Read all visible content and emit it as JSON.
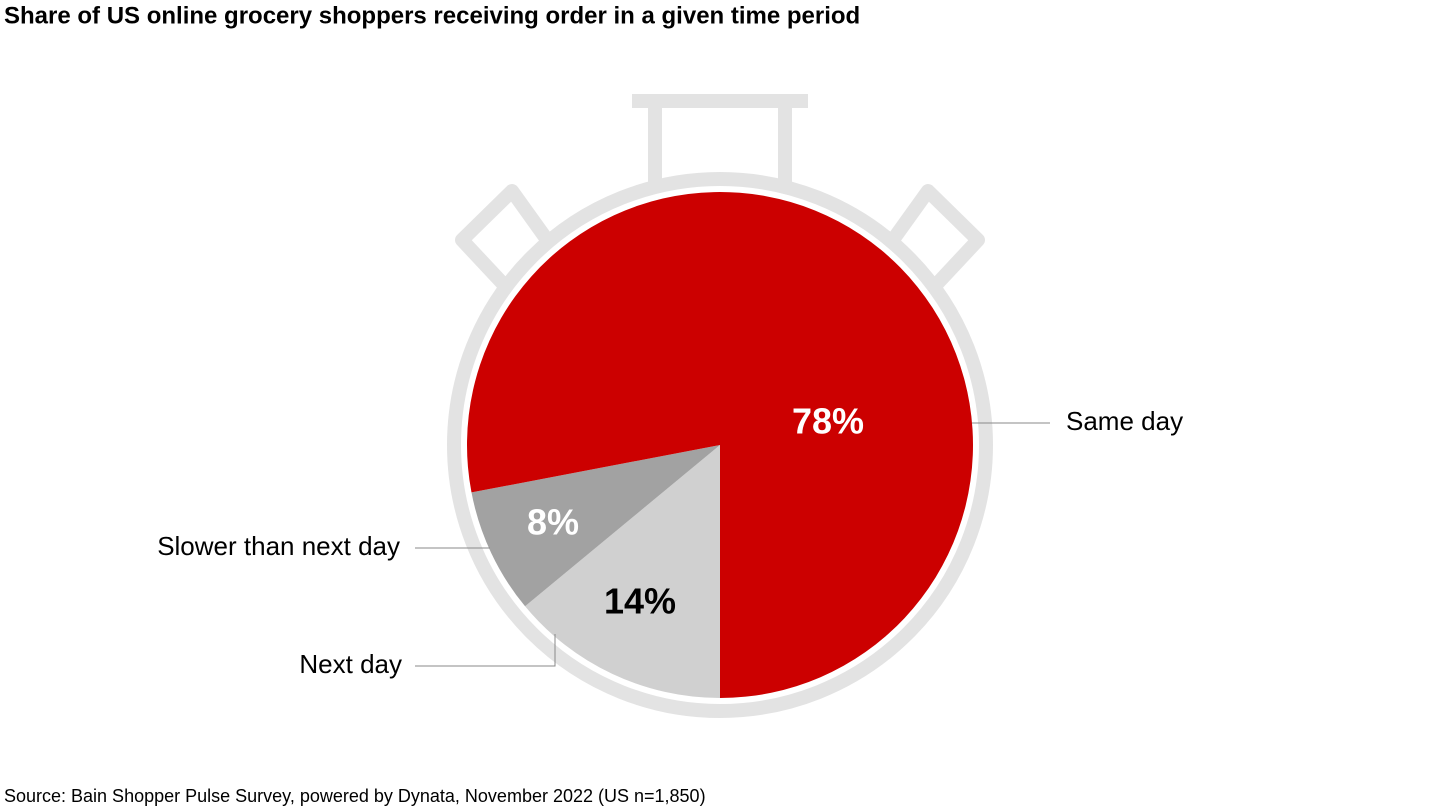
{
  "chart_data": {
    "type": "pie",
    "title": "Share of US online grocery shoppers receiving order in a given time period",
    "categories": [
      "Next day",
      "Slower than next day",
      "Same day"
    ],
    "values": [
      14,
      8,
      78
    ],
    "value_labels": [
      "14%",
      "8%",
      "78%"
    ],
    "colors": [
      "#d0d0d0",
      "#a2a2a2",
      "#cc0000"
    ],
    "source": "Source: Bain Shopper Pulse Survey, powered by Dynata, November 2022 (US n=1,850)"
  }
}
